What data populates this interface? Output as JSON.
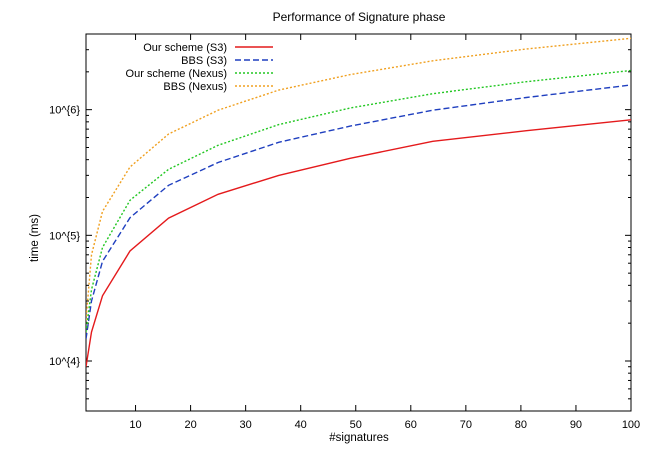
{
  "chart_data": {
    "type": "line",
    "title": "Performance of Signature phase",
    "xlabel": "#signatures",
    "ylabel": "time (ms)",
    "xlim": [
      1,
      100
    ],
    "xticks": [
      10,
      20,
      30,
      40,
      50,
      60,
      70,
      80,
      90,
      100
    ],
    "xtick_labels": [
      "10",
      "20",
      "30",
      "40",
      "50",
      "60",
      "70",
      "80",
      "90",
      "100"
    ],
    "ylim": [
      4000,
      4000000
    ],
    "yscale": "log",
    "yticks": [
      10000,
      100000,
      1000000
    ],
    "ytick_labels": [
      "10^{4}",
      "10^{5}",
      "10^{6}"
    ],
    "grid": false,
    "legend_position": "top-left",
    "x": [
      1,
      2,
      4,
      9,
      16,
      25,
      36,
      49,
      64,
      81,
      100
    ],
    "series": [
      {
        "name": "Our scheme (S3)",
        "color": "#e41a1c",
        "dash": "solid",
        "values": [
          9000,
          17000,
          33000,
          75000,
          137000,
          212000,
          300000,
          410000,
          560000,
          680000,
          830000
        ]
      },
      {
        "name": "BBS (S3)",
        "color": "#1f3fbf",
        "dash": "dashed",
        "values": [
          15000,
          30000,
          62000,
          138000,
          250000,
          380000,
          550000,
          740000,
          990000,
          1250000,
          1570000
        ]
      },
      {
        "name": "Our scheme (Nexus)",
        "color": "#22c722",
        "dash": "dotted",
        "values": [
          17000,
          37000,
          80000,
          190000,
          335000,
          520000,
          760000,
          1030000,
          1340000,
          1670000,
          2050000
        ]
      },
      {
        "name": "BBS (Nexus)",
        "color": "#f0a020",
        "dash": "dotted",
        "values": [
          21000,
          70000,
          155000,
          350000,
          640000,
          990000,
          1430000,
          1900000,
          2450000,
          3040000,
          3700000
        ]
      }
    ]
  }
}
